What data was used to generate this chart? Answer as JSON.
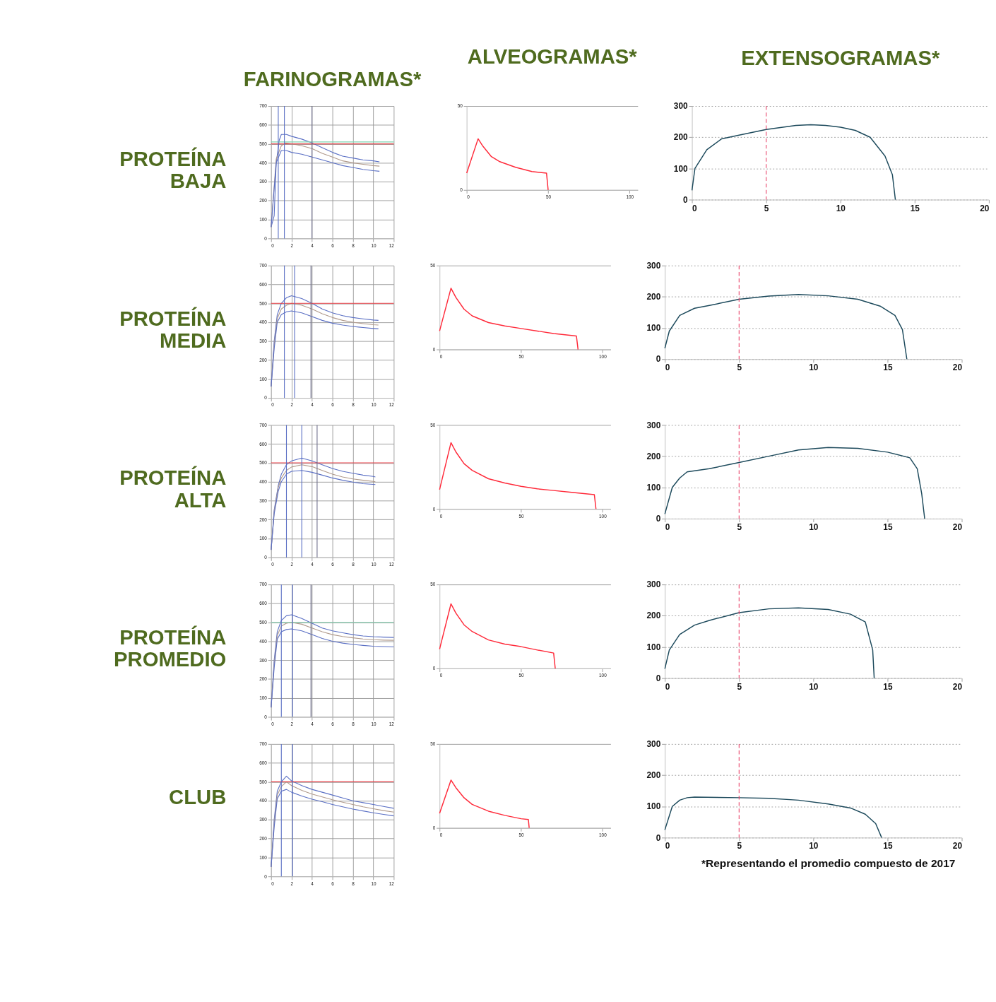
{
  "chart_data": [
    {
      "type": "line",
      "title": "FARINOGRAMAS*",
      "ylabel": "PROTEÍNA BAJA",
      "xlim": [
        0,
        12
      ],
      "ylim": [
        0,
        700
      ],
      "xticks": [
        0,
        2,
        4,
        6,
        8,
        10,
        12
      ],
      "yticks": [
        0,
        100,
        200,
        300,
        400,
        500,
        600,
        700
      ],
      "grid": true,
      "series": [
        {
          "color": "#5a6fc4",
          "x": [
            0,
            0.3,
            0.5,
            0.8,
            1,
            1.5,
            2,
            3,
            4,
            5,
            6,
            7,
            8,
            9,
            10,
            10.6
          ],
          "values": [
            60,
            120,
            400,
            520,
            550,
            550,
            540,
            525,
            505,
            480,
            455,
            435,
            425,
            415,
            410,
            405
          ]
        },
        {
          "color": "#b09a8c",
          "x": [
            0,
            0.5,
            1,
            1.4,
            2,
            3,
            4,
            5,
            6,
            7,
            8,
            9,
            10,
            10.6
          ],
          "values": [
            60,
            420,
            490,
            505,
            500,
            490,
            475,
            450,
            430,
            410,
            400,
            392,
            385,
            382
          ]
        },
        {
          "color": "#5a6fc4",
          "x": [
            0,
            0.5,
            1,
            1.5,
            2,
            3,
            4,
            5,
            6,
            7,
            8,
            9,
            10,
            10.6
          ],
          "values": [
            60,
            400,
            465,
            465,
            455,
            445,
            430,
            415,
            400,
            385,
            375,
            365,
            358,
            355
          ]
        }
      ],
      "ref_lines": [
        {
          "axis": "y",
          "value": 500,
          "color": "#e8434a"
        },
        {
          "axis": "y",
          "value": 510,
          "color": "#7fd3b0"
        },
        {
          "axis": "x",
          "value": 0.7,
          "color": "#5a6fc4"
        },
        {
          "axis": "x",
          "value": 1.3,
          "color": "#5a6fc4"
        },
        {
          "axis": "x",
          "value": 4,
          "color": "#6d6d8a"
        }
      ]
    },
    {
      "type": "line",
      "title": "ALVEOGRAMAS*",
      "xlim": [
        0,
        105
      ],
      "ylim": [
        0,
        50
      ],
      "xticks": [
        0,
        50,
        100
      ],
      "yticks": [
        0,
        50
      ],
      "grid": "y",
      "series": [
        {
          "color": "#ff2a3a",
          "x": [
            0,
            7,
            10,
            15,
            20,
            30,
            40,
            49,
            50
          ],
          "values": [
            10,
            30.5,
            26,
            20,
            17,
            13.5,
            11,
            10,
            0
          ]
        }
      ]
    },
    {
      "type": "line",
      "title": "EXTENSOGRAMAS*",
      "xlim": [
        0,
        20
      ],
      "ylim": [
        0,
        300
      ],
      "xticks": [
        0,
        5,
        10,
        15,
        20
      ],
      "yticks": [
        0,
        100,
        200,
        300
      ],
      "grid": "y",
      "series": [
        {
          "color": "#1d4a5c",
          "x": [
            0,
            0.2,
            1,
            2,
            3,
            5,
            7,
            8,
            9,
            10,
            11,
            12,
            13,
            13.5,
            13.7
          ],
          "values": [
            30,
            100,
            160,
            195,
            205,
            225,
            238,
            240,
            238,
            232,
            222,
            200,
            140,
            80,
            0
          ]
        }
      ],
      "ref_lines": [
        {
          "axis": "x",
          "value": 5,
          "color": "#e8436a",
          "line_style": "dashed"
        }
      ]
    },
    {
      "type": "line",
      "ylabel": "PROTEÍNA MEDIA",
      "xlim": [
        0,
        12
      ],
      "ylim": [
        0,
        700
      ],
      "xticks": [
        0,
        2,
        4,
        6,
        8,
        10,
        12
      ],
      "yticks": [
        0,
        100,
        200,
        300,
        400,
        500,
        600,
        700
      ],
      "grid": true,
      "series": [
        {
          "color": "#5a6fc4",
          "x": [
            0,
            0.3,
            0.6,
            1,
            1.5,
            2,
            3,
            4,
            5,
            6,
            7,
            8,
            9,
            10,
            10.5
          ],
          "values": [
            60,
            300,
            440,
            500,
            530,
            540,
            525,
            500,
            470,
            450,
            435,
            425,
            418,
            412,
            410
          ]
        },
        {
          "color": "#b09a8c",
          "x": [
            0,
            0.3,
            0.6,
            1,
            1.5,
            2,
            3,
            4,
            5,
            6,
            7,
            8,
            9,
            10,
            10.5
          ],
          "values": [
            60,
            280,
            420,
            470,
            490,
            500,
            490,
            470,
            445,
            425,
            410,
            400,
            393,
            387,
            385
          ]
        },
        {
          "color": "#5a6fc4",
          "x": [
            0,
            0.3,
            0.6,
            1,
            1.5,
            2,
            3,
            4,
            5,
            6,
            7,
            8,
            9,
            10,
            10.5
          ],
          "values": [
            60,
            260,
            400,
            440,
            455,
            460,
            450,
            430,
            410,
            395,
            385,
            378,
            372,
            367,
            365
          ]
        }
      ],
      "ref_lines": [
        {
          "axis": "y",
          "value": 500,
          "color": "#e8434a"
        },
        {
          "axis": "x",
          "value": 1.3,
          "color": "#5a6fc4"
        },
        {
          "axis": "x",
          "value": 2.3,
          "color": "#5a6fc4"
        },
        {
          "axis": "x",
          "value": 3.9,
          "color": "#6d6d8a"
        }
      ]
    },
    {
      "type": "line",
      "xlim": [
        0,
        105
      ],
      "ylim": [
        0,
        50
      ],
      "xticks": [
        0,
        50,
        100
      ],
      "yticks": [
        0,
        50
      ],
      "grid": "y",
      "series": [
        {
          "color": "#ff2a3a",
          "x": [
            0,
            7,
            10,
            15,
            20,
            30,
            40,
            50,
            60,
            70,
            84,
            85
          ],
          "values": [
            11,
            36.5,
            31,
            24,
            20,
            16,
            14,
            12.5,
            11,
            9.5,
            8,
            0
          ]
        }
      ]
    },
    {
      "type": "line",
      "xlim": [
        0,
        20
      ],
      "ylim": [
        0,
        300
      ],
      "xticks": [
        0,
        5,
        10,
        15,
        20
      ],
      "yticks": [
        0,
        100,
        200,
        300
      ],
      "grid": "y",
      "series": [
        {
          "color": "#1d4a5c",
          "x": [
            0,
            0.3,
            1,
            2,
            3,
            5,
            7,
            9,
            11,
            13,
            14.5,
            15.5,
            16,
            16.3
          ],
          "values": [
            35,
            90,
            140,
            163,
            172,
            192,
            202,
            207,
            203,
            192,
            170,
            140,
            95,
            0
          ]
        }
      ],
      "ref_lines": [
        {
          "axis": "x",
          "value": 5,
          "color": "#e8436a",
          "line_style": "dashed"
        }
      ]
    },
    {
      "type": "line",
      "ylabel": "PROTEÍNA ALTA",
      "xlim": [
        0,
        12
      ],
      "ylim": [
        0,
        700
      ],
      "xticks": [
        0,
        2,
        4,
        6,
        8,
        10,
        12
      ],
      "yticks": [
        0,
        100,
        200,
        300,
        400,
        500,
        600,
        700
      ],
      "grid": true,
      "series": [
        {
          "color": "#5a6fc4",
          "x": [
            0,
            0.3,
            0.7,
            1,
            1.5,
            2,
            3,
            4,
            5,
            6,
            7,
            8,
            9,
            10,
            10.2
          ],
          "values": [
            40,
            250,
            380,
            440,
            490,
            510,
            525,
            510,
            490,
            470,
            455,
            445,
            435,
            428,
            425
          ]
        },
        {
          "color": "#b09a8c",
          "x": [
            0,
            0.3,
            0.7,
            1,
            1.5,
            2,
            3,
            4,
            5,
            6,
            7,
            8,
            9,
            10,
            10.2
          ],
          "values": [
            40,
            240,
            370,
            420,
            460,
            478,
            490,
            480,
            460,
            440,
            425,
            415,
            408,
            402,
            400
          ]
        },
        {
          "color": "#5a6fc4",
          "x": [
            0,
            0.3,
            0.7,
            1,
            1.5,
            2,
            3,
            4,
            5,
            6,
            7,
            8,
            9,
            10,
            10.2
          ],
          "values": [
            40,
            230,
            350,
            400,
            440,
            455,
            460,
            450,
            435,
            420,
            408,
            398,
            390,
            386,
            385
          ]
        }
      ],
      "ref_lines": [
        {
          "axis": "y",
          "value": 500,
          "color": "#e8434a"
        },
        {
          "axis": "x",
          "value": 1.5,
          "color": "#5a6fc4"
        },
        {
          "axis": "x",
          "value": 3,
          "color": "#5a6fc4"
        },
        {
          "axis": "x",
          "value": 4.5,
          "color": "#6d6d8a"
        }
      ]
    },
    {
      "type": "line",
      "xlim": [
        0,
        105
      ],
      "ylim": [
        0,
        50
      ],
      "xticks": [
        0,
        50,
        100
      ],
      "yticks": [
        0,
        50
      ],
      "grid": "y",
      "series": [
        {
          "color": "#ff2a3a",
          "x": [
            0,
            7,
            10,
            15,
            20,
            30,
            40,
            50,
            60,
            70,
            80,
            95,
            96
          ],
          "values": [
            11.5,
            39.5,
            34,
            27,
            23,
            18,
            15.5,
            13.5,
            12,
            11,
            10,
            8.5,
            0
          ]
        }
      ]
    },
    {
      "type": "line",
      "xlim": [
        0,
        20
      ],
      "ylim": [
        0,
        300
      ],
      "xticks": [
        0,
        5,
        10,
        15,
        20
      ],
      "yticks": [
        0,
        100,
        200,
        300
      ],
      "grid": "y",
      "series": [
        {
          "color": "#1d4a5c",
          "x": [
            0,
            0.5,
            1,
            1.5,
            3,
            5,
            7,
            9,
            11,
            13,
            15,
            16.5,
            17,
            17.3,
            17.5
          ],
          "values": [
            15,
            100,
            130,
            150,
            160,
            180,
            200,
            220,
            228,
            225,
            213,
            195,
            160,
            80,
            0
          ]
        }
      ],
      "ref_lines": [
        {
          "axis": "x",
          "value": 5,
          "color": "#e8436a",
          "line_style": "dashed"
        }
      ]
    },
    {
      "type": "line",
      "ylabel": "PROTEÍNA PROMEDIO",
      "xlim": [
        0,
        12
      ],
      "ylim": [
        0,
        700
      ],
      "xticks": [
        0,
        2,
        4,
        6,
        8,
        10,
        12
      ],
      "yticks": [
        0,
        100,
        200,
        300,
        400,
        500,
        600,
        700
      ],
      "grid": true,
      "series": [
        {
          "color": "#5a6fc4",
          "x": [
            0,
            0.3,
            0.6,
            1,
            1.5,
            2,
            3,
            4,
            5,
            6,
            7,
            8,
            9,
            10,
            11,
            12
          ],
          "values": [
            50,
            300,
            450,
            510,
            535,
            540,
            520,
            495,
            470,
            455,
            445,
            435,
            428,
            424,
            422,
            420
          ]
        },
        {
          "color": "#b09a8c",
          "x": [
            0,
            0.3,
            0.6,
            1,
            1.5,
            2,
            3,
            4,
            5,
            6,
            7,
            8,
            9,
            10,
            11,
            12
          ],
          "values": [
            50,
            280,
            430,
            480,
            495,
            500,
            490,
            470,
            450,
            435,
            425,
            418,
            412,
            408,
            406,
            405
          ]
        },
        {
          "color": "#5a6fc4",
          "x": [
            0,
            0.3,
            0.6,
            1,
            1.5,
            2,
            3,
            4,
            5,
            6,
            7,
            8,
            9,
            10,
            11,
            12
          ],
          "values": [
            50,
            260,
            410,
            450,
            462,
            465,
            455,
            435,
            415,
            400,
            390,
            383,
            378,
            374,
            372,
            370
          ]
        }
      ],
      "ref_lines": [
        {
          "axis": "y",
          "value": 500,
          "color": "#7fd3b0"
        },
        {
          "axis": "x",
          "value": 1,
          "color": "#5a6fc4"
        },
        {
          "axis": "x",
          "value": 2.1,
          "color": "#5a6fc4"
        },
        {
          "axis": "x",
          "value": 3.9,
          "color": "#6d6d8a"
        }
      ]
    },
    {
      "type": "line",
      "xlim": [
        0,
        105
      ],
      "ylim": [
        0,
        50
      ],
      "xticks": [
        0,
        50,
        100
      ],
      "yticks": [
        0,
        50
      ],
      "grid": "y",
      "series": [
        {
          "color": "#ff2a3a",
          "x": [
            0,
            7,
            10,
            15,
            20,
            30,
            40,
            50,
            60,
            70,
            71
          ],
          "values": [
            11.5,
            38.5,
            33,
            26,
            22,
            17,
            14.5,
            13,
            11,
            9.2,
            0
          ]
        }
      ]
    },
    {
      "type": "line",
      "xlim": [
        0,
        20
      ],
      "ylim": [
        0,
        300
      ],
      "xticks": [
        0,
        5,
        10,
        15,
        20
      ],
      "yticks": [
        0,
        100,
        200,
        300
      ],
      "grid": "y",
      "series": [
        {
          "color": "#1d4a5c",
          "x": [
            0,
            0.3,
            1,
            2,
            3,
            5,
            7,
            9,
            11,
            12.5,
            13.5,
            14,
            14.1
          ],
          "values": [
            30,
            90,
            140,
            170,
            185,
            210,
            222,
            225,
            220,
            205,
            180,
            90,
            0
          ]
        }
      ],
      "ref_lines": [
        {
          "axis": "x",
          "value": 5,
          "color": "#e8436a",
          "line_style": "dashed"
        }
      ]
    },
    {
      "type": "line",
      "ylabel": "CLUB",
      "xlim": [
        0,
        12
      ],
      "ylim": [
        0,
        700
      ],
      "xticks": [
        0,
        2,
        4,
        6,
        8,
        10,
        12
      ],
      "yticks": [
        0,
        100,
        200,
        300,
        400,
        500,
        600,
        700
      ],
      "grid": true,
      "series": [
        {
          "color": "#5a6fc4",
          "x": [
            0,
            0.3,
            0.6,
            1,
            1.5,
            2,
            3,
            4,
            5,
            6,
            7,
            8,
            9,
            10,
            11,
            12
          ],
          "values": [
            50,
            300,
            450,
            500,
            530,
            505,
            480,
            460,
            445,
            430,
            415,
            400,
            390,
            380,
            370,
            360
          ]
        },
        {
          "color": "#b09a8c",
          "x": [
            0,
            0.3,
            0.6,
            1,
            1.5,
            2,
            3,
            4,
            5,
            6,
            7,
            8,
            9,
            10,
            11,
            12
          ],
          "values": [
            50,
            280,
            430,
            475,
            500,
            480,
            455,
            435,
            420,
            405,
            392,
            380,
            368,
            358,
            348,
            340
          ]
        },
        {
          "color": "#5a6fc4",
          "x": [
            0,
            0.3,
            0.6,
            1,
            1.5,
            2,
            3,
            4,
            5,
            6,
            7,
            8,
            9,
            10,
            11,
            12
          ],
          "values": [
            50,
            260,
            410,
            450,
            460,
            445,
            425,
            408,
            395,
            380,
            368,
            356,
            346,
            336,
            328,
            320
          ]
        }
      ],
      "ref_lines": [
        {
          "axis": "y",
          "value": 500,
          "color": "#e8434a"
        },
        {
          "axis": "x",
          "value": 1,
          "color": "#5a6fc4"
        },
        {
          "axis": "x",
          "value": 2.1,
          "color": "#5a6fc4"
        }
      ]
    },
    {
      "type": "line",
      "xlim": [
        0,
        105
      ],
      "ylim": [
        0,
        50
      ],
      "xticks": [
        0,
        50,
        100
      ],
      "yticks": [
        0,
        50
      ],
      "grid": "y",
      "series": [
        {
          "color": "#ff2a3a",
          "x": [
            0,
            7,
            10,
            15,
            20,
            30,
            40,
            50,
            54.5,
            55
          ],
          "values": [
            8.7,
            28.5,
            24,
            18,
            14,
            10,
            7.5,
            5.5,
            5,
            0
          ]
        }
      ]
    },
    {
      "type": "line",
      "xlim": [
        0,
        20
      ],
      "ylim": [
        0,
        300
      ],
      "xticks": [
        0,
        5,
        10,
        15,
        20
      ],
      "yticks": [
        0,
        100,
        200,
        300
      ],
      "grid": "y",
      "series": [
        {
          "color": "#1d4a5c",
          "x": [
            0,
            0.5,
            1,
            1.5,
            2,
            5,
            7,
            9,
            11,
            12.5,
            13.5,
            14.2,
            14.6
          ],
          "values": [
            25,
            100,
            120,
            128,
            130,
            128,
            126,
            120,
            108,
            95,
            75,
            45,
            0
          ]
        }
      ],
      "ref_lines": [
        {
          "axis": "x",
          "value": 5,
          "color": "#e8436a",
          "line_style": "dashed"
        }
      ],
      "annotations": [
        "*Representando el promedio compuesto de 2017"
      ]
    }
  ]
}
